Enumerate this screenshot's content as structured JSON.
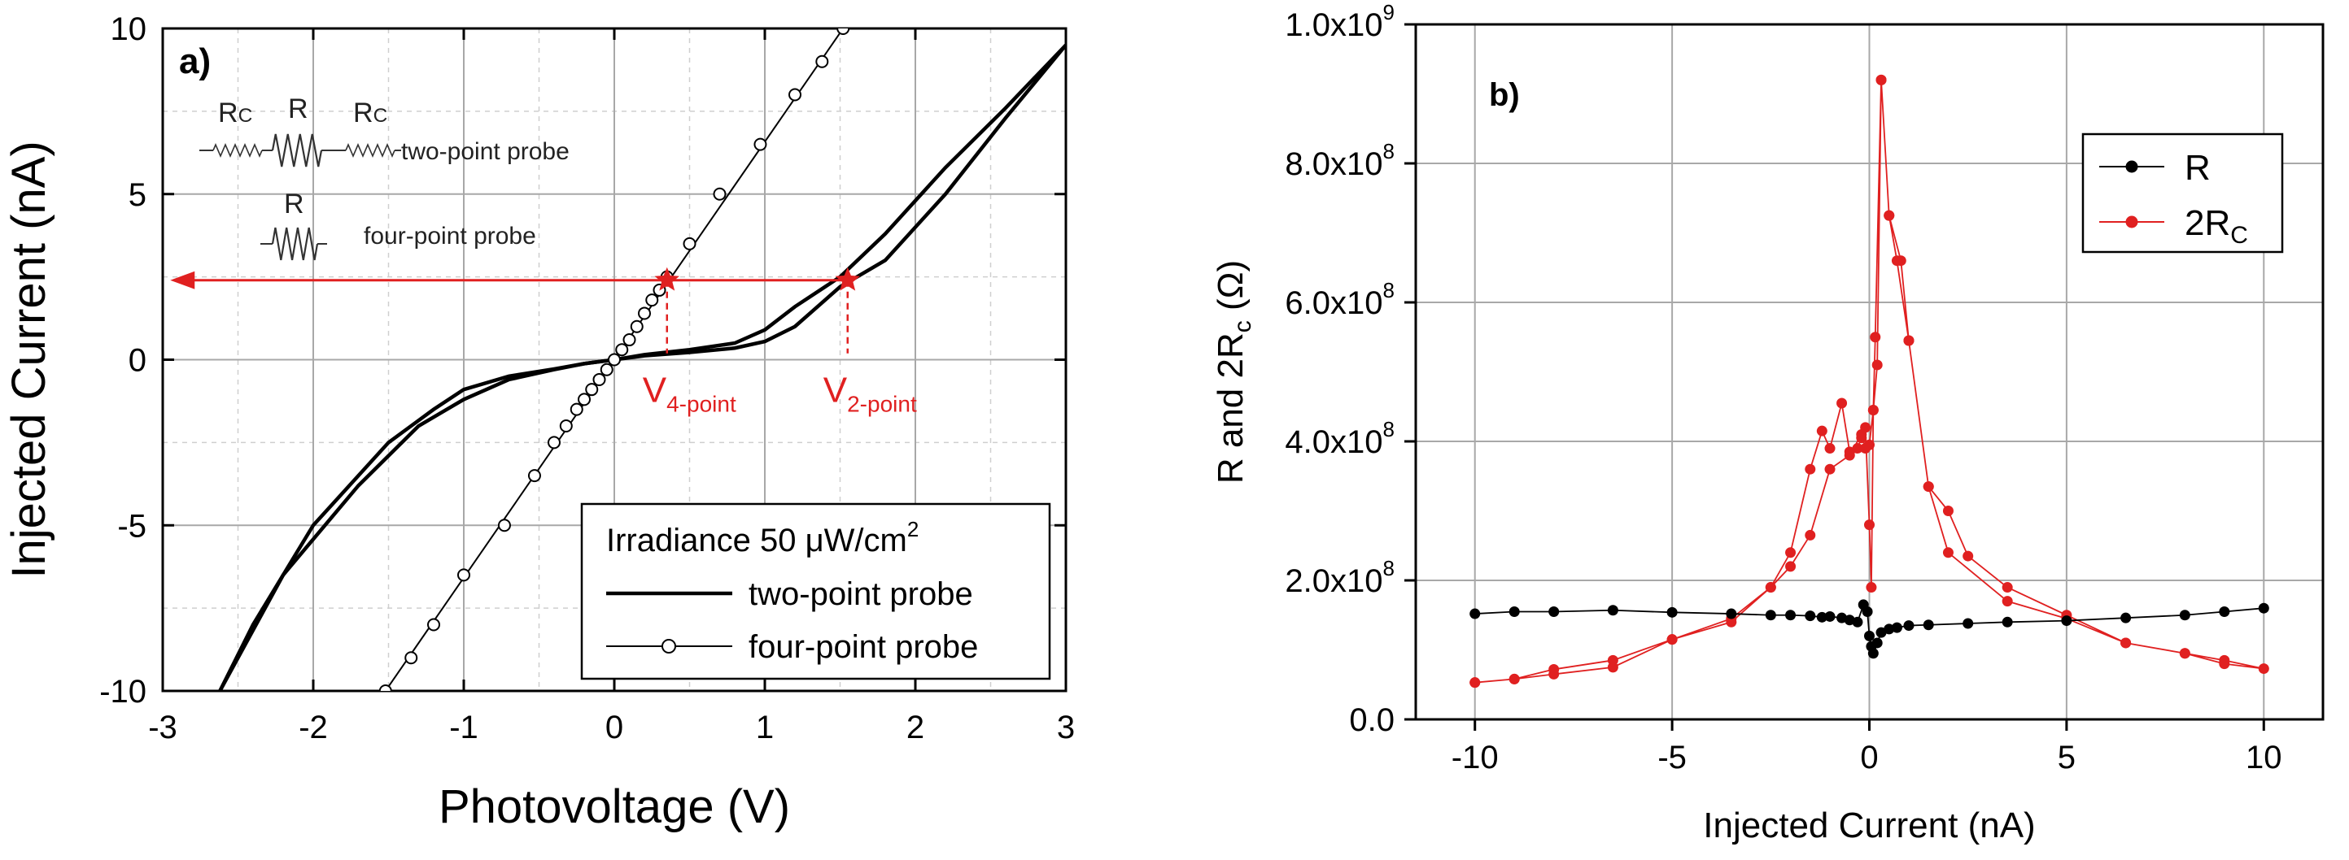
{
  "chart_data": [
    {
      "type": "line",
      "panel_label": "a)",
      "xlabel": "Photovoltage (V)",
      "ylabel": "Injected Current (nA)",
      "xlim": [
        -3,
        3
      ],
      "ylim": [
        -10,
        10
      ],
      "xticks": [
        "-3",
        "-2",
        "-1",
        "0",
        "1",
        "2",
        "3"
      ],
      "yticks": [
        "-10",
        "-5",
        "0",
        "5",
        "10"
      ],
      "grid": true,
      "legend_title_prefix": "Irradiance 50 ",
      "legend_title_mu": "μ",
      "legend_title_unit": "W/cm",
      "legend_title_sup": "2",
      "legend_placement": "bottom-right",
      "series": [
        {
          "name": "two-point probe",
          "color": "#000000",
          "marker": "none",
          "branches": [
            {
              "x": [
                -2.62,
                -2.4,
                -2.0,
                -1.5,
                -1.2,
                -1.0,
                -0.7,
                -0.4,
                -0.2,
                0,
                0.2,
                0.5,
                0.8,
                1.0,
                1.2,
                1.5,
                1.8,
                2.2,
                2.6,
                3.0
              ],
              "y": [
                -10,
                -8.0,
                -5.0,
                -2.5,
                -1.5,
                -0.9,
                -0.5,
                -0.28,
                -0.12,
                0,
                0.15,
                0.3,
                0.5,
                0.9,
                1.6,
                2.5,
                3.8,
                5.8,
                7.6,
                9.5
              ]
            },
            {
              "x": [
                -2.62,
                -2.2,
                -1.7,
                -1.3,
                -1.0,
                -0.7,
                -0.4,
                -0.2,
                0,
                0.2,
                0.5,
                0.8,
                1.0,
                1.2,
                1.5,
                1.8,
                2.2,
                2.6,
                3.0
              ],
              "y": [
                -10,
                -6.5,
                -3.8,
                -2.0,
                -1.2,
                -0.6,
                -0.3,
                -0.12,
                0,
                0.12,
                0.22,
                0.35,
                0.55,
                1.0,
                2.2,
                3.0,
                5.0,
                7.3,
                9.5
              ]
            }
          ]
        },
        {
          "name": "four-point probe",
          "color": "#000000",
          "marker": "open-circle",
          "points": {
            "x": [
              -1.52,
              -1.35,
              -1.2,
              -1.0,
              -0.73,
              -0.53,
              -0.4,
              -0.32,
              -0.25,
              -0.2,
              -0.15,
              -0.1,
              -0.05,
              0,
              0.05,
              0.1,
              0.15,
              0.2,
              0.25,
              0.3,
              0.35,
              0.5,
              0.7,
              0.97,
              1.2,
              1.38,
              1.52
            ],
            "y": [
              -10,
              -9,
              -8,
              -6.5,
              -5,
              -3.5,
              -2.5,
              -2.0,
              -1.5,
              -1.2,
              -0.9,
              -0.6,
              -0.3,
              0,
              0.3,
              0.6,
              1.0,
              1.4,
              1.8,
              2.1,
              2.5,
              3.5,
              5.0,
              6.5,
              8.0,
              9.0,
              10
            ]
          },
          "line_x": [
            -1.52,
            1.52
          ],
          "line_y": [
            -10,
            10
          ]
        }
      ],
      "annotations": {
        "arrow": {
          "x_from": 1.55,
          "x_to": -2.95,
          "y": 2.4,
          "color": "#e02020"
        },
        "star_points": [
          {
            "x": 0.35,
            "y": 2.4
          },
          {
            "x": 1.55,
            "y": 2.4
          }
        ],
        "v4_label": {
          "main": "V",
          "sub": "4-point",
          "x": 0.35
        },
        "v2_label": {
          "main": "V",
          "sub": "2-point",
          "x": 1.55
        },
        "circuit": {
          "rc_left": "R",
          "rc_left_sub": "C",
          "r_mid": "R",
          "rc_right": "R",
          "rc_right_sub": "C",
          "two_point_text": "two-point probe",
          "r_four": "R",
          "four_point_text": "four-point probe"
        }
      }
    },
    {
      "type": "scatter",
      "panel_label": "b)",
      "xlabel": "Injected Current (nA)",
      "ylabel_prefix": "R and 2R",
      "ylabel_sub": "c",
      "ylabel_suffix": " (Ω)",
      "xlim": [
        -11.5,
        11.5
      ],
      "ylim": [
        0,
        1000000000.0
      ],
      "xticks": [
        "-10",
        "-5",
        "0",
        "5",
        "10"
      ],
      "xtick_values": [
        -10,
        -5,
        0,
        5,
        10
      ],
      "yticks_mantissa": [
        "0.0",
        "2.0x10",
        "4.0x10",
        "6.0x10",
        "8.0x10",
        "1.0x10"
      ],
      "yticks_exp": [
        "",
        "8",
        "8",
        "8",
        "8",
        "9"
      ],
      "ytick_values": [
        0,
        200000000.0,
        400000000.0,
        600000000.0,
        800000000.0,
        1000000000.0
      ],
      "grid": true,
      "legend_placement": "top-right",
      "series": [
        {
          "name": "R",
          "name_sub": "",
          "color": "#000000",
          "x": [
            -10,
            -9,
            -8,
            -6.5,
            -5,
            -3.5,
            -2.5,
            -2,
            -1.5,
            -1.2,
            -1,
            -0.7,
            -0.5,
            -0.3,
            -0.15,
            -0.05,
            0,
            0.05,
            0.1,
            0.2,
            0.3,
            0.5,
            0.7,
            1,
            1.5,
            2.5,
            3.5,
            5,
            6.5,
            8,
            9,
            10
          ],
          "y": [
            152000000.0,
            155000000.0,
            155000000.0,
            157000000.0,
            154000000.0,
            152000000.0,
            150000000.0,
            150000000.0,
            149000000.0,
            147000000.0,
            148000000.0,
            146000000.0,
            143000000.0,
            140000000.0,
            165000000.0,
            155000000.0,
            120000000.0,
            105000000.0,
            95000000.0,
            110000000.0,
            125000000.0,
            130000000.0,
            132000000.0,
            135000000.0,
            136000000.0,
            138000000.0,
            140000000.0,
            142000000.0,
            146000000.0,
            150000000.0,
            155000000.0,
            160000000.0
          ]
        },
        {
          "name": "2R",
          "name_sub": "C",
          "color": "#e02020",
          "x": [
            -10,
            -9,
            -8,
            -6.5,
            -5,
            -3.5,
            -2.5,
            -2,
            -1.5,
            -1.2,
            -1,
            -0.7,
            -0.5,
            -0.3,
            -0.2,
            -0.1,
            0,
            0.05,
            0.1,
            0.15,
            0.3,
            0.5,
            0.7,
            1,
            1.5,
            2,
            2.5,
            3.5,
            5,
            6.5,
            8,
            9,
            10,
            9,
            8,
            6.5,
            5,
            3.5,
            2,
            1.5,
            1,
            0.8,
            0.5,
            0.3,
            0.2,
            0.1,
            0,
            -0.1,
            -0.2,
            -0.5,
            -1,
            -1.5,
            -2,
            -2.5,
            -3.5,
            -5,
            -6.5,
            -8,
            -9,
            -10
          ],
          "y": [
            53000000.0,
            58000000.0,
            65000000.0,
            75000000.0,
            115000000.0,
            140000000.0,
            190000000.0,
            240000000.0,
            360000000.0,
            415000000.0,
            390000000.0,
            455000000.0,
            385000000.0,
            390000000.0,
            405000000.0,
            420000000.0,
            280000000.0,
            190000000.0,
            445000000.0,
            550000000.0,
            920000000.0,
            725000000.0,
            660000000.0,
            545000000.0,
            335000000.0,
            300000000.0,
            235000000.0,
            190000000.0,
            150000000.0,
            110000000.0,
            95000000.0,
            85000000.0,
            73000000.0,
            80000000.0,
            95000000.0,
            110000000.0,
            145000000.0,
            170000000.0,
            240000000.0,
            335000000.0,
            545000000.0,
            660000000.0,
            725000000.0,
            920000000.0,
            510000000.0,
            445000000.0,
            395000000.0,
            390000000.0,
            410000000.0,
            380000000.0,
            360000000.0,
            265000000.0,
            220000000.0,
            190000000.0,
            145000000.0,
            115000000.0,
            85000000.0,
            72000000.0,
            58000000.0,
            53000000.0
          ]
        }
      ]
    }
  ]
}
